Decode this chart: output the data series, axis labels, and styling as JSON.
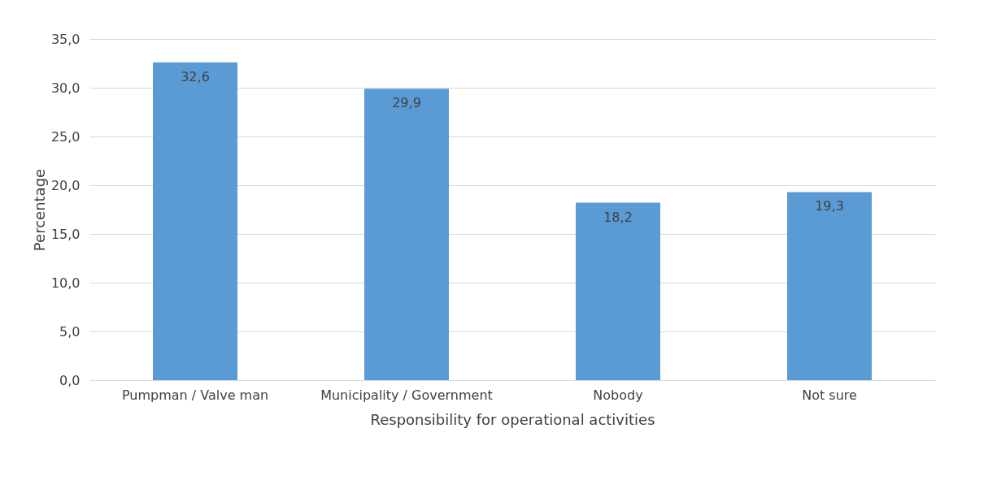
{
  "chart_data": {
    "type": "bar",
    "xlabel": "Responsibility for operational activities",
    "ylabel": "Percentage",
    "categories": [
      "Pumpman / Valve man",
      "Municipality / Government",
      "Nobody",
      "Not sure"
    ],
    "values": [
      32.6,
      29.9,
      18.2,
      19.3
    ],
    "value_labels": [
      "32,6",
      "29,9",
      "18,2",
      "19,3"
    ],
    "color": "#5b9bd5",
    "ylim": [
      0,
      35
    ],
    "yticks": [
      {
        "value": 0,
        "label": "0,0"
      },
      {
        "value": 5,
        "label": "5,0"
      },
      {
        "value": 10,
        "label": "10,0"
      },
      {
        "value": 15,
        "label": "15,0"
      },
      {
        "value": 20,
        "label": "20,0"
      },
      {
        "value": 25,
        "label": "25,0"
      },
      {
        "value": 30,
        "label": "30,0"
      },
      {
        "value": 35,
        "label": "35,0"
      }
    ],
    "grid": "y"
  }
}
